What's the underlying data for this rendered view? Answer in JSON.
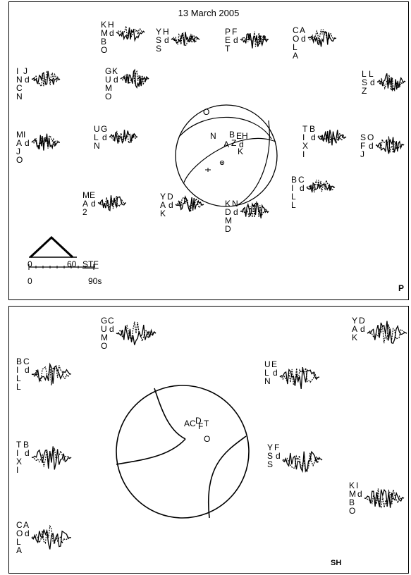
{
  "panel_p": {
    "date": "13 March 2005",
    "phase": "P",
    "stf": {
      "label": "STF",
      "top_scale": [
        "0",
        "60"
      ],
      "bottom_scale": [
        "0",
        "90s"
      ]
    },
    "stations": [
      {
        "code": "KMBO",
        "comp": "H",
        "sub": "d"
      },
      {
        "code": "YSS",
        "comp": "H",
        "sub": "d"
      },
      {
        "code": "PET",
        "comp": "F",
        "sub": "d"
      },
      {
        "code": "COLA",
        "comp": "A",
        "sub": "d"
      },
      {
        "code": "INCN",
        "comp": "J",
        "sub": "d"
      },
      {
        "code": "GUMO",
        "comp": "K",
        "sub": "d"
      },
      {
        "code": "LSZ",
        "comp": "L",
        "sub": "d"
      },
      {
        "code": "MAJO",
        "comp": "I",
        "sub": "d"
      },
      {
        "code": "ULN",
        "comp": "G",
        "sub": "d"
      },
      {
        "code": "TIXI",
        "comp": "B",
        "sub": "d"
      },
      {
        "code": "SFJ",
        "comp": "O",
        "sub": "d"
      },
      {
        "code": "BILL",
        "comp": "C",
        "sub": "d"
      },
      {
        "code": "MA2",
        "comp": "E",
        "sub": "d"
      },
      {
        "code": "YAK",
        "comp": "D",
        "sub": "d"
      },
      {
        "code": "KDMD",
        "comp": "N",
        "sub": "d"
      }
    ],
    "sphere_labels": [
      "O",
      "N",
      "A",
      "B",
      "E",
      "H",
      "Z",
      "d",
      "K"
    ]
  },
  "panel_sh": {
    "phase": "SH",
    "stations": [
      {
        "code": "GUMO",
        "comp": "C",
        "sub": "d"
      },
      {
        "code": "YAK",
        "comp": "D",
        "sub": "d"
      },
      {
        "code": "BILL",
        "comp": "C",
        "sub": "d"
      },
      {
        "code": "ULN",
        "comp": "E",
        "sub": "d"
      },
      {
        "code": "TIXI",
        "comp": "B",
        "sub": "d"
      },
      {
        "code": "YSS",
        "comp": "F",
        "sub": "d"
      },
      {
        "code": "KMBO",
        "comp": "I",
        "sub": "d"
      },
      {
        "code": "COLA",
        "comp": "A",
        "sub": "d"
      }
    ],
    "sphere_labels": [
      "A",
      "C",
      "D",
      "F",
      "T",
      "O"
    ]
  }
}
